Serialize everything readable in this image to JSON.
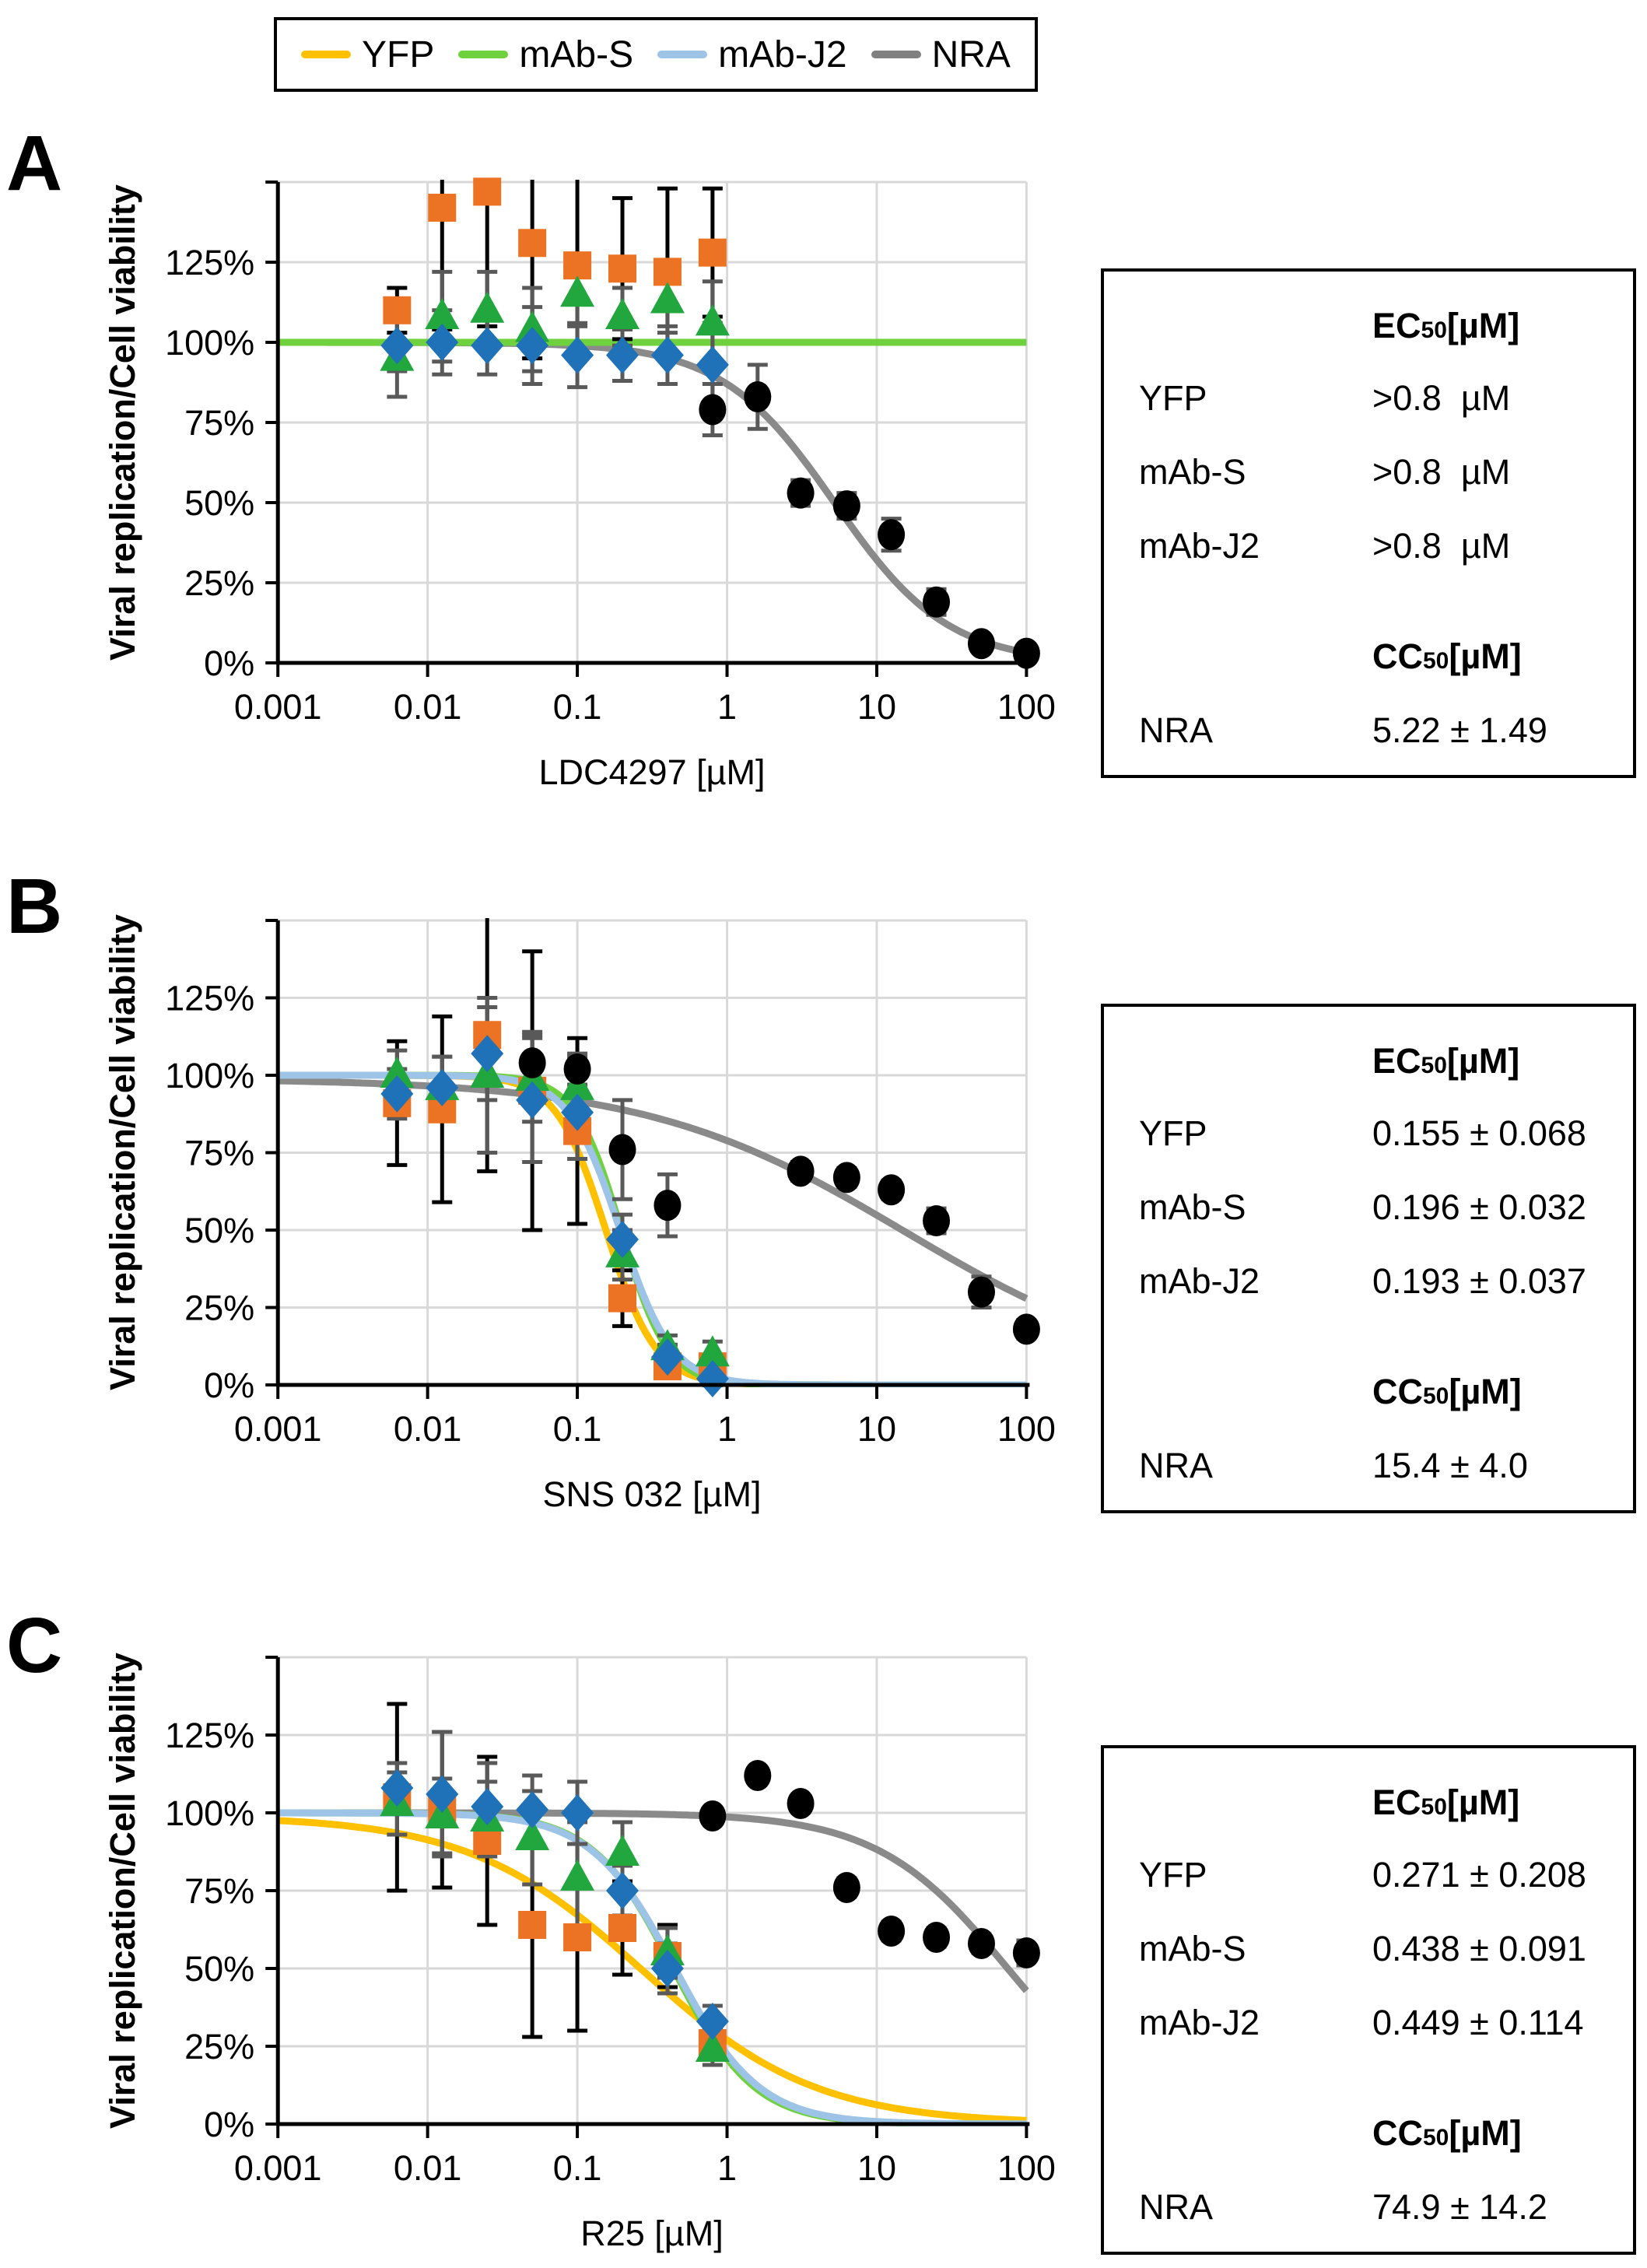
{
  "legend": {
    "items": [
      {
        "label": "YFP",
        "color": "#FFC000"
      },
      {
        "label": "mAb-S",
        "color": "#70D13F"
      },
      {
        "label": "mAb-J2",
        "color": "#9DC3E6"
      },
      {
        "label": "NRA",
        "color": "#808080"
      }
    ]
  },
  "chart_data": [
    {
      "id": "A",
      "type": "scatter",
      "panel_label": "A",
      "x_label": "LDC4297 [µM]",
      "y_label": "Viral replication/Cell viability",
      "x_scale": "log",
      "x_range": [
        0.001,
        100
      ],
      "x_tick_labels": [
        "0.001",
        "0.01",
        "0.1",
        "1",
        "10",
        "100"
      ],
      "y_range_pct": [
        0,
        150
      ],
      "y_tick_labels": [
        "0%",
        "25%",
        "50%",
        "75%",
        "100%",
        "125%"
      ],
      "grid": true,
      "series": [
        {
          "name": "YFP",
          "marker": "square",
          "color": "#EC7323",
          "bar_color": "#000000",
          "x": [
            0.00625,
            0.0125,
            0.025,
            0.05,
            0.1,
            0.2,
            0.4,
            0.8
          ],
          "y_pct": [
            110,
            142,
            147,
            131,
            124,
            123,
            122,
            128
          ],
          "err_pct": [
            7,
            38,
            42,
            36,
            28,
            22,
            26,
            20
          ]
        },
        {
          "name": "mAb-S",
          "marker": "triangle",
          "color": "#22A63E",
          "bar_color": "#595959",
          "x": [
            0.00625,
            0.0125,
            0.025,
            0.05,
            0.1,
            0.2,
            0.4,
            0.8
          ],
          "y_pct": [
            95,
            108,
            110,
            104,
            115,
            108,
            113,
            106
          ],
          "err_pct": [
            12,
            14,
            12,
            13,
            10,
            9,
            10,
            13
          ]
        },
        {
          "name": "mAb-J2",
          "marker": "diamond",
          "color": "#1F72B8",
          "bar_color": "#595959",
          "x": [
            0.00625,
            0.0125,
            0.025,
            0.05,
            0.1,
            0.2,
            0.4,
            0.8
          ],
          "y_pct": [
            99,
            100,
            99,
            99,
            96,
            96,
            96,
            93
          ],
          "err_pct": [
            8,
            10,
            9,
            12,
            10,
            8,
            9,
            13
          ]
        },
        {
          "name": "NRA",
          "marker": "circle",
          "color": "#000000",
          "bar_color": "#595959",
          "x": [
            0.8,
            1.6,
            3.1,
            6.3,
            12.5,
            25,
            50,
            100
          ],
          "y_pct": [
            79,
            83,
            53,
            49,
            40,
            19,
            6,
            3
          ],
          "err_pct": [
            8,
            10,
            4,
            4,
            5,
            4,
            2,
            2
          ]
        }
      ],
      "curves": [
        {
          "name": "NRA-fit",
          "color": "#8A8A8A",
          "top": 100,
          "ec50": 5.22,
          "hill": 1.15
        },
        {
          "name": "mAb-S-fit",
          "color": "#70D13F",
          "flat": 100
        }
      ],
      "table": {
        "ec50_header": {
          "pre": "EC",
          "sub": "50",
          "post": " [µM]"
        },
        "rows": [
          [
            "YFP",
            ">0.8  µM"
          ],
          [
            "mAb-S",
            ">0.8  µM"
          ],
          [
            "mAb-J2",
            ">0.8  µM"
          ]
        ],
        "cc50_header": {
          "pre": "CC",
          "sub": "50",
          "post": " [µM]"
        },
        "cc50_row": [
          "NRA",
          "5.22 ± 1.49"
        ]
      }
    },
    {
      "id": "B",
      "type": "scatter",
      "panel_label": "B",
      "x_label": "SNS 032 [µM]",
      "y_label": "Viral replication/Cell viability",
      "x_scale": "log",
      "x_range": [
        0.001,
        100
      ],
      "x_tick_labels": [
        "0.001",
        "0.01",
        "0.1",
        "1",
        "10",
        "100"
      ],
      "y_range_pct": [
        0,
        150
      ],
      "y_tick_labels": [
        "0%",
        "25%",
        "50%",
        "75%",
        "100%",
        "125%"
      ],
      "grid": true,
      "series": [
        {
          "name": "YFP",
          "marker": "square",
          "color": "#EC7323",
          "bar_color": "#000000",
          "x": [
            0.00625,
            0.0125,
            0.025,
            0.05,
            0.1,
            0.2,
            0.4,
            0.8
          ],
          "y_pct": [
            91,
            89,
            113,
            95,
            82,
            28,
            6,
            6
          ],
          "err_pct": [
            20,
            30,
            44,
            45,
            30,
            9,
            3,
            3
          ]
        },
        {
          "name": "mAb-S",
          "marker": "triangle",
          "color": "#22A63E",
          "bar_color": "#595959",
          "x": [
            0.00625,
            0.0125,
            0.025,
            0.05,
            0.1,
            0.2,
            0.4,
            0.8
          ],
          "y_pct": [
            100,
            96,
            100,
            99,
            96,
            42,
            12,
            10
          ],
          "err_pct": [
            8,
            10,
            25,
            14,
            10,
            8,
            4,
            4
          ]
        },
        {
          "name": "mAb-J2",
          "marker": "diamond",
          "color": "#1F72B8",
          "bar_color": "#595959",
          "x": [
            0.00625,
            0.0125,
            0.025,
            0.05,
            0.1,
            0.2,
            0.4,
            0.8
          ],
          "y_pct": [
            94,
            96,
            107,
            92,
            88,
            47,
            9,
            2
          ],
          "err_pct": [
            8,
            10,
            15,
            20,
            15,
            8,
            4,
            3
          ]
        },
        {
          "name": "NRA",
          "marker": "circle",
          "color": "#000000",
          "bar_color": "#595959",
          "x": [
            0.05,
            0.1,
            0.2,
            0.4,
            3.1,
            6.3,
            12.5,
            25,
            50,
            100
          ],
          "y_pct": [
            104,
            102,
            76,
            58,
            69,
            67,
            63,
            53,
            30,
            18
          ],
          "err_pct": [
            10,
            5,
            16,
            10,
            3,
            3,
            3,
            4,
            5,
            3
          ]
        }
      ],
      "curves": [
        {
          "name": "NRA-fit",
          "color": "#8A8A8A",
          "top": 99,
          "ec50": 15.4,
          "hill": 0.5
        },
        {
          "name": "YFP-fit",
          "color": "#FFC000",
          "top": 100,
          "ec50": 0.155,
          "hill": 2.6
        },
        {
          "name": "mAb-S-fit",
          "color": "#70D13F",
          "top": 100,
          "ec50": 0.196,
          "hill": 2.8
        },
        {
          "name": "mAb-J2-fit",
          "color": "#9DC3E6",
          "top": 100,
          "ec50": 0.193,
          "hill": 2.5
        }
      ],
      "table": {
        "ec50_header": {
          "pre": "EC",
          "sub": "50",
          "post": " [µM]"
        },
        "rows": [
          [
            "YFP",
            "0.155 ± 0.068"
          ],
          [
            "mAb-S",
            "0.196 ± 0.032"
          ],
          [
            "mAb-J2",
            "0.193 ± 0.037"
          ]
        ],
        "cc50_header": {
          "pre": "CC",
          "sub": "50",
          "post": " [µM]"
        },
        "cc50_row": [
          "NRA",
          "15.4 ± 4.0"
        ]
      }
    },
    {
      "id": "C",
      "type": "scatter",
      "panel_label": "C",
      "x_label": "R25 [µM]",
      "y_label": "Viral replication/Cell viability",
      "x_scale": "log",
      "x_range": [
        0.001,
        100
      ],
      "x_tick_labels": [
        "0.001",
        "0.01",
        "0.1",
        "1",
        "10",
        "100"
      ],
      "y_range_pct": [
        0,
        150
      ],
      "y_tick_labels": [
        "0%",
        "25%",
        "50%",
        "75%",
        "100%",
        "125%"
      ],
      "grid": true,
      "series": [
        {
          "name": "YFP",
          "marker": "square",
          "color": "#EC7323",
          "bar_color": "#000000",
          "x": [
            0.00625,
            0.0125,
            0.025,
            0.05,
            0.1,
            0.2,
            0.4,
            0.8
          ],
          "y_pct": [
            105,
            101,
            91,
            64,
            60,
            63,
            54,
            26
          ],
          "err_pct": [
            30,
            25,
            27,
            36,
            30,
            15,
            10,
            5
          ]
        },
        {
          "name": "mAb-S",
          "marker": "triangle",
          "color": "#22A63E",
          "bar_color": "#595959",
          "x": [
            0.00625,
            0.0125,
            0.025,
            0.05,
            0.1,
            0.2,
            0.4,
            0.8
          ],
          "y_pct": [
            103,
            99,
            98,
            92,
            79,
            87,
            55,
            24
          ],
          "err_pct": [
            10,
            12,
            12,
            15,
            18,
            10,
            8,
            5
          ]
        },
        {
          "name": "mAb-J2",
          "marker": "diamond",
          "color": "#1F72B8",
          "bar_color": "#595959",
          "x": [
            0.00625,
            0.0125,
            0.025,
            0.05,
            0.1,
            0.2,
            0.4,
            0.8
          ],
          "y_pct": [
            108,
            106,
            102,
            101,
            100,
            75,
            50,
            33
          ],
          "err_pct": [
            8,
            20,
            14,
            11,
            10,
            8,
            8,
            5
          ]
        },
        {
          "name": "NRA",
          "marker": "circle",
          "color": "#000000",
          "bar_color": "#595959",
          "x": [
            0.8,
            1.6,
            3.1,
            6.3,
            12.5,
            25,
            50,
            100
          ],
          "y_pct": [
            99,
            112,
            103,
            76,
            62,
            60,
            58,
            55
          ],
          "err_pct": [
            2,
            2,
            2,
            3,
            3,
            3,
            3,
            4
          ]
        }
      ],
      "curves": [
        {
          "name": "NRA-fit",
          "color": "#8A8A8A",
          "top": 100,
          "ec50": 74.9,
          "hill": 1.0
        },
        {
          "name": "YFP-fit",
          "color": "#FFC000",
          "top": 99,
          "ec50": 0.271,
          "hill": 0.75
        },
        {
          "name": "mAb-S-fit",
          "color": "#70D13F",
          "top": 100,
          "ec50": 0.438,
          "hill": 1.6
        },
        {
          "name": "mAb-J2-fit",
          "color": "#9DC3E6",
          "top": 100,
          "ec50": 0.449,
          "hill": 1.55
        }
      ],
      "table": {
        "ec50_header": {
          "pre": "EC",
          "sub": "50",
          "post": " [µM]"
        },
        "rows": [
          [
            "YFP",
            "0.271 ± 0.208"
          ],
          [
            "mAb-S",
            "0.438 ± 0.091"
          ],
          [
            "mAb-J2",
            "0.449 ± 0.114"
          ]
        ],
        "cc50_header": {
          "pre": "CC",
          "sub": "50",
          "post": " [µM]"
        },
        "cc50_row": [
          "NRA",
          "74.9 ± 14.2"
        ]
      }
    }
  ]
}
